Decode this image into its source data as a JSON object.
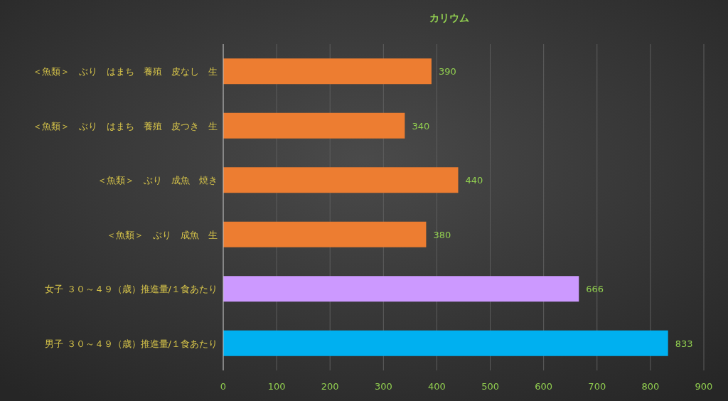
{
  "chart_data": {
    "type": "bar",
    "orientation": "horizontal",
    "title": "カリウム",
    "categories": [
      "＜魚類＞　ぶり　はまち　養殖　皮なし　生",
      "＜魚類＞　ぶり　はまち　養殖　皮つき　生",
      "＜魚類＞　ぶり　成魚　焼き",
      "＜魚類＞　ぶり　成魚　生",
      "女子 ３０～４９（歳）推進量/１食あたり",
      "男子 ３０～４９（歳）推進量/１食あたり"
    ],
    "values": [
      390,
      340,
      440,
      380,
      666,
      833
    ],
    "colors": [
      "#ed7d31",
      "#ed7d31",
      "#ed7d31",
      "#ed7d31",
      "#cc99ff",
      "#00b0f0"
    ],
    "xlim": [
      0,
      900
    ],
    "xticks": [
      0,
      100,
      200,
      300,
      400,
      500,
      600,
      700,
      800,
      900
    ],
    "grid": "x",
    "data_labels": true
  }
}
